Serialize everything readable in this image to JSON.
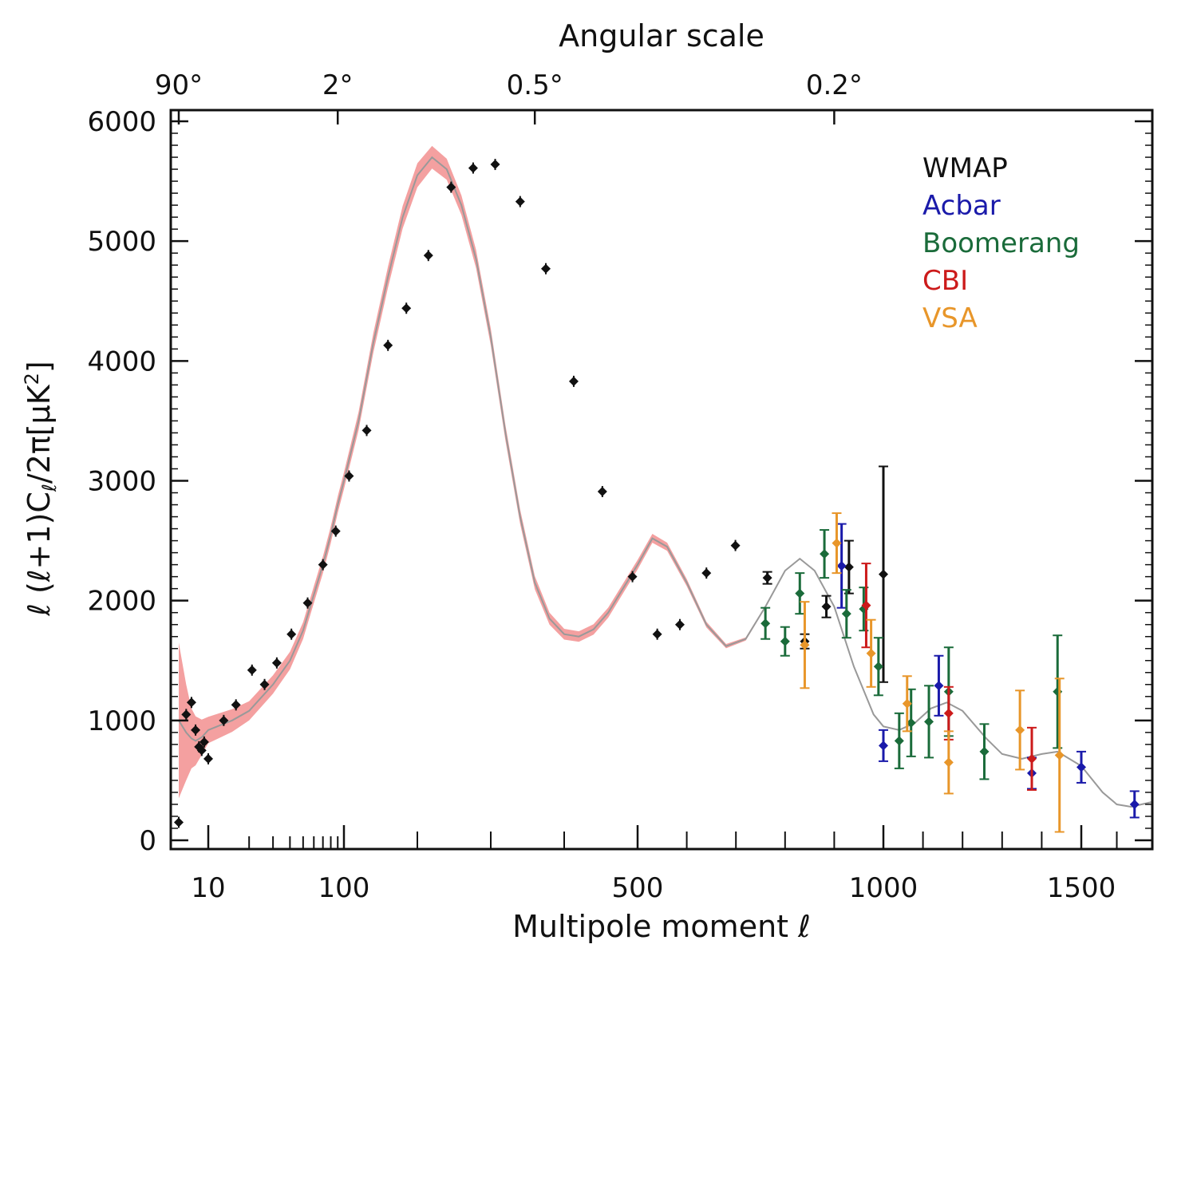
{
  "chart_data": {
    "type": "scatter",
    "title": "",
    "xlabel": "Multipole moment ℓ",
    "ylabel": "ℓ (ℓ+1)C",
    "ylabel_sub": "ℓ",
    "ylabel_tail": "/2π[μK",
    "ylabel_sup": "2",
    "ylabel_close": "]",
    "top_axis_title": "Angular scale",
    "top_ticks": [
      {
        "label": "90°",
        "ell": 2
      },
      {
        "label": "2°",
        "ell": 90
      },
      {
        "label": "0.5°",
        "ell": 360
      },
      {
        "label": "0.2°",
        "ell": 900
      }
    ],
    "x_scale": "log for ℓ < 100, linear for ℓ ≥ 100",
    "xlim": [
      2,
      1700
    ],
    "ylim": [
      0,
      6000
    ],
    "x_ticks": [
      {
        "label": "10",
        "value": 10
      },
      {
        "label": "100",
        "value": 100
      },
      {
        "label": "500",
        "value": 500
      },
      {
        "label": "1000",
        "value": 1000
      },
      {
        "label": "1500",
        "value": 1500
      }
    ],
    "x_minor_ticks": [
      20,
      30,
      40,
      50,
      60,
      70,
      80,
      90,
      200,
      300,
      400,
      600,
      700,
      800,
      900,
      1100,
      1200,
      1300,
      1400,
      1600
    ],
    "y_ticks": [
      {
        "label": "0",
        "value": 0
      },
      {
        "label": "1000",
        "value": 1000
      },
      {
        "label": "2000",
        "value": 2000
      },
      {
        "label": "3000",
        "value": 3000
      },
      {
        "label": "4000",
        "value": 4000
      },
      {
        "label": "5000",
        "value": 5000
      },
      {
        "label": "6000",
        "value": 6000
      }
    ],
    "legend": {
      "position": "top-right",
      "entries": [
        {
          "label": "WMAP",
          "color": "#111111"
        },
        {
          "label": "Acbar",
          "color": "#1a1aaa"
        },
        {
          "label": "Boomerang",
          "color": "#1a6b3a"
        },
        {
          "label": "CBI",
          "color": "#cc1a1a"
        },
        {
          "label": "VSA",
          "color": "#e8962a"
        }
      ]
    },
    "model_band_color": "#f4a0a0",
    "model_line_color": "#999999",
    "model_curve": [
      [
        2,
        1000
      ],
      [
        3,
        900
      ],
      [
        4,
        850
      ],
      [
        5,
        830
      ],
      [
        7,
        860
      ],
      [
        10,
        920
      ],
      [
        15,
        1000
      ],
      [
        20,
        1080
      ],
      [
        30,
        1300
      ],
      [
        40,
        1500
      ],
      [
        50,
        1750
      ],
      [
        60,
        2050
      ],
      [
        70,
        2300
      ],
      [
        80,
        2550
      ],
      [
        90,
        2800
      ],
      [
        100,
        3000
      ],
      [
        120,
        3500
      ],
      [
        140,
        4150
      ],
      [
        160,
        4700
      ],
      [
        180,
        5200
      ],
      [
        200,
        5550
      ],
      [
        220,
        5700
      ],
      [
        240,
        5600
      ],
      [
        260,
        5300
      ],
      [
        280,
        4850
      ],
      [
        300,
        4200
      ],
      [
        320,
        3400
      ],
      [
        340,
        2700
      ],
      [
        360,
        2150
      ],
      [
        380,
        1850
      ],
      [
        400,
        1720
      ],
      [
        420,
        1700
      ],
      [
        440,
        1760
      ],
      [
        460,
        1900
      ],
      [
        480,
        2100
      ],
      [
        500,
        2300
      ],
      [
        530,
        2520
      ],
      [
        560,
        2450
      ],
      [
        600,
        2150
      ],
      [
        640,
        1800
      ],
      [
        680,
        1620
      ],
      [
        720,
        1680
      ],
      [
        760,
        1950
      ],
      [
        800,
        2250
      ],
      [
        830,
        2350
      ],
      [
        860,
        2250
      ],
      [
        900,
        1950
      ],
      [
        940,
        1450
      ],
      [
        980,
        1050
      ],
      [
        1000,
        950
      ],
      [
        1040,
        920
      ],
      [
        1080,
        980
      ],
      [
        1120,
        1100
      ],
      [
        1160,
        1150
      ],
      [
        1200,
        1080
      ],
      [
        1260,
        850
      ],
      [
        1300,
        720
      ],
      [
        1350,
        680
      ],
      [
        1400,
        720
      ],
      [
        1440,
        740
      ],
      [
        1500,
        620
      ],
      [
        1560,
        400
      ],
      [
        1600,
        300
      ],
      [
        1640,
        280
      ],
      [
        1700,
        320
      ]
    ],
    "band_halfwidth": [
      [
        2,
        650
      ],
      [
        3,
        400
      ],
      [
        4,
        250
      ],
      [
        6,
        160
      ],
      [
        10,
        110
      ],
      [
        20,
        80
      ],
      [
        50,
        70
      ],
      [
        100,
        70
      ],
      [
        200,
        100
      ],
      [
        300,
        70
      ],
      [
        400,
        45
      ],
      [
        500,
        40
      ],
      [
        600,
        30
      ],
      [
        700,
        15
      ],
      [
        800,
        5
      ]
    ],
    "series": [
      {
        "name": "WMAP",
        "color": "#111111",
        "points": [
          {
            "x": 2,
            "y": 150,
            "e": 0
          },
          {
            "x": 3,
            "y": 1050,
            "e": 0
          },
          {
            "x": 4,
            "y": 1150,
            "e": 0
          },
          {
            "x": 5,
            "y": 920,
            "e": 0
          },
          {
            "x": 6,
            "y": 780,
            "e": 0
          },
          {
            "x": 7,
            "y": 750,
            "e": 0
          },
          {
            "x": 8,
            "y": 820,
            "e": 0
          },
          {
            "x": 10,
            "y": 680,
            "e": 0
          },
          {
            "x": 13,
            "y": 1000,
            "e": 0
          },
          {
            "x": 16,
            "y": 1130,
            "e": 0
          },
          {
            "x": 21,
            "y": 1420,
            "e": 0
          },
          {
            "x": 26,
            "y": 1300,
            "e": 0
          },
          {
            "x": 32,
            "y": 1480,
            "e": 0
          },
          {
            "x": 41,
            "y": 1720,
            "e": 0
          },
          {
            "x": 54,
            "y": 1980,
            "e": 0
          },
          {
            "x": 70,
            "y": 2300,
            "e": 0
          },
          {
            "x": 87,
            "y": 2580,
            "e": 0
          },
          {
            "x": 107,
            "y": 3040,
            "e": 0
          },
          {
            "x": 131,
            "y": 3420,
            "e": 0
          },
          {
            "x": 160,
            "y": 4130,
            "e": 0
          },
          {
            "x": 185,
            "y": 4440,
            "e": 0
          },
          {
            "x": 215,
            "y": 4880,
            "e": 0
          },
          {
            "x": 246,
            "y": 5450,
            "e": 0
          },
          {
            "x": 276,
            "y": 5610,
            "e": 0
          },
          {
            "x": 306,
            "y": 5640,
            "e": 0
          },
          {
            "x": 340,
            "y": 5330,
            "e": 0
          },
          {
            "x": 375,
            "y": 4770,
            "e": 0
          },
          {
            "x": 413,
            "y": 3830,
            "e": 0
          },
          {
            "x": 452,
            "y": 2910,
            "e": 0
          },
          {
            "x": 493,
            "y": 2200,
            "e": 0
          },
          {
            "x": 540,
            "y": 1720,
            "e": 0
          },
          {
            "x": 586,
            "y": 1800,
            "e": 0
          },
          {
            "x": 640,
            "y": 2230,
            "e": 0
          },
          {
            "x": 699,
            "y": 2460,
            "e": 0
          },
          {
            "x": 764,
            "y": 2190,
            "e": 50
          },
          {
            "x": 840,
            "y": 1660,
            "e": 60
          },
          {
            "x": 884,
            "y": 1950,
            "e": 90
          },
          {
            "x": 930,
            "y": 2280,
            "e": 220
          },
          {
            "x": 1000,
            "y": 2220,
            "e": 900
          }
        ]
      },
      {
        "name": "Acbar",
        "color": "#1a1aaa",
        "points": [
          {
            "x": 915,
            "y": 2290,
            "e": 350
          },
          {
            "x": 1000,
            "y": 790,
            "e": 130
          },
          {
            "x": 1140,
            "y": 1290,
            "e": 250
          },
          {
            "x": 1375,
            "y": 560,
            "e": 130
          },
          {
            "x": 1500,
            "y": 610,
            "e": 130
          },
          {
            "x": 1650,
            "y": 300,
            "e": 110
          }
        ]
      },
      {
        "name": "Boomerang",
        "color": "#1a6b3a",
        "points": [
          {
            "x": 760,
            "y": 1810,
            "e": 130
          },
          {
            "x": 800,
            "y": 1660,
            "e": 120
          },
          {
            "x": 830,
            "y": 2060,
            "e": 170
          },
          {
            "x": 880,
            "y": 2390,
            "e": 200
          },
          {
            "x": 925,
            "y": 1890,
            "e": 200
          },
          {
            "x": 960,
            "y": 1930,
            "e": 180
          },
          {
            "x": 990,
            "y": 1450,
            "e": 240
          },
          {
            "x": 1040,
            "y": 830,
            "e": 230
          },
          {
            "x": 1070,
            "y": 980,
            "e": 280
          },
          {
            "x": 1115,
            "y": 990,
            "e": 300
          },
          {
            "x": 1165,
            "y": 1240,
            "e": 370
          },
          {
            "x": 1255,
            "y": 740,
            "e": 230
          },
          {
            "x": 1440,
            "y": 1240,
            "e": 470
          }
        ]
      },
      {
        "name": "CBI",
        "color": "#cc1a1a",
        "points": [
          {
            "x": 965,
            "y": 1960,
            "e": 350
          },
          {
            "x": 1165,
            "y": 1060,
            "e": 220
          },
          {
            "x": 1375,
            "y": 680,
            "e": 260
          }
        ]
      },
      {
        "name": "VSA",
        "color": "#e8962a",
        "points": [
          {
            "x": 840,
            "y": 1630,
            "e": 360
          },
          {
            "x": 905,
            "y": 2480,
            "e": 250
          },
          {
            "x": 975,
            "y": 1560,
            "e": 280
          },
          {
            "x": 1060,
            "y": 1140,
            "e": 230
          },
          {
            "x": 1165,
            "y": 650,
            "e": 260
          },
          {
            "x": 1345,
            "y": 920,
            "e": 330
          },
          {
            "x": 1445,
            "y": 710,
            "e": 640
          }
        ]
      }
    ]
  }
}
